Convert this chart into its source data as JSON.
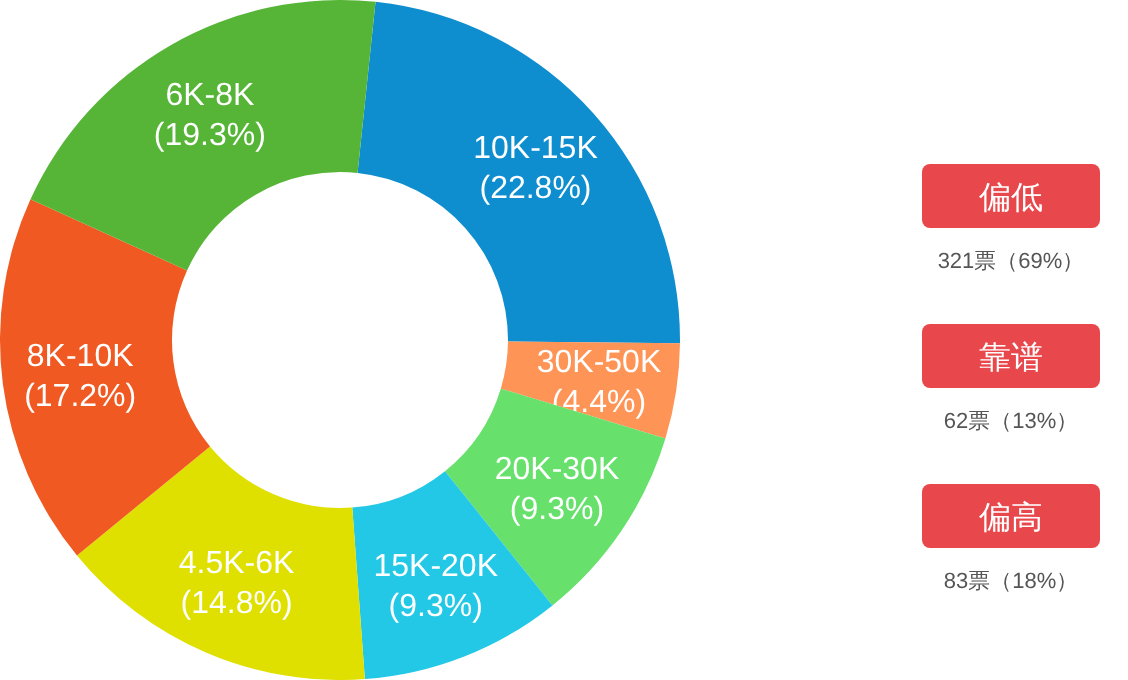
{
  "chart_data": [
    {
      "type": "donut",
      "categories": [
        "10K-15K",
        "30K-50K",
        "20K-30K",
        "15K-20K",
        "4.5K-6K",
        "8K-10K",
        "6K-8K"
      ],
      "values": [
        22.8,
        4.4,
        9.3,
        9.3,
        14.8,
        17.2,
        19.3
      ],
      "value_labels": [
        "(22.8%)",
        "(4.4%)",
        "(9.3%)",
        "(9.3%)",
        "(14.8%)",
        "(17.2%)",
        "(19.3%)"
      ],
      "colors": [
        "#0e8ecf",
        "#fe9456",
        "#67e06c",
        "#22c8e5",
        "#dfe000",
        "#f05a22",
        "#56b537"
      ]
    },
    {
      "type": "other",
      "color": "#e8474c",
      "categories": [
        "偏低",
        "靠谱",
        "偏高"
      ],
      "annotations": [
        "321票（69%）",
        "62票（13%）",
        "83票（18%）"
      ]
    }
  ]
}
